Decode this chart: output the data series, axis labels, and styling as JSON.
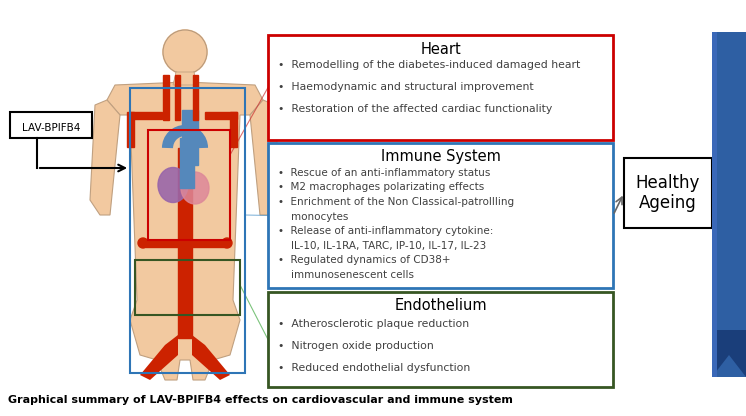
{
  "bg_color": "#ffffff",
  "title": "Graphical summary of LAV-BPIFB4 effects on cardiovascular and immune system",
  "lav_label": "LAV-BPIFB4",
  "healthy_ageing": "Healthy\nAgeing",
  "heart_title": "Heart",
  "heart_bullets": [
    "Remodelling of the diabetes-induced damaged heart",
    "Haemodynamic and structural improvement",
    "Restoration of the affected cardiac functionality"
  ],
  "heart_box_color": "#cc0000",
  "immune_title": "Immune System",
  "immune_bullets": [
    "Rescue of an anti-inflammatory status",
    "M2 macrophages polarizating effects",
    "Enrichment of the Non Classical-patrollling monocytes",
    "Release of anti-inflammatory cytokine:",
    "IL-10, IL-1RA, TARC, IP-10, IL-17, IL-23",
    "Regulated dynamics of CD38+",
    "immunosenescent cells"
  ],
  "immune_box_color": "#2e75b6",
  "endo_title": "Endothelium",
  "endo_bullets": [
    "Atherosclerotic plaque reduction",
    "Nitrogen oxide production",
    "Reduced endothelial dysfunction"
  ],
  "endo_box_color": "#375623",
  "body_box_color": "#2e75b6",
  "heart_region_color": "#cc0000",
  "endo_region_color": "#375623",
  "flesh_color": "#f2c9a0",
  "flesh_dark": "#e8b88a",
  "vessel_color": "#cc2200",
  "blue_vessel_color": "#5588bb",
  "arrow_blue": "#2e5fa3",
  "arrow_blue_dark": "#1a3e7a"
}
